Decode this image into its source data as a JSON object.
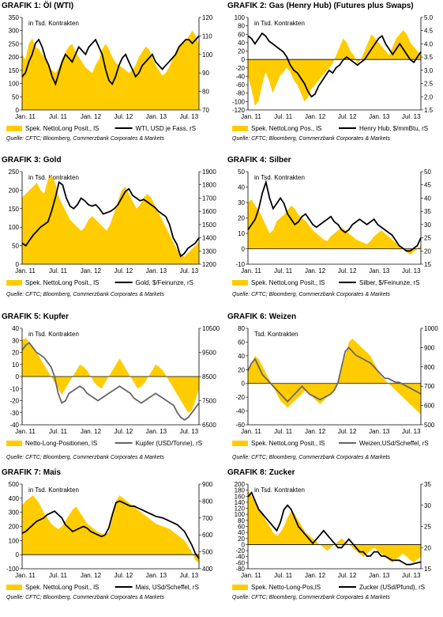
{
  "charts": [
    {
      "title": "GRAFIK 1: Öl (WTI)",
      "note": "in Tsd. Kontrakten",
      "source": "Quelle: CFTC; Bloomberg, Commerzbank Corporates & Markets",
      "legend_area": "Spek. NettoLong Posit., lS",
      "legend_line": "WTI, USD je Fass, rS"
    },
    {
      "title": "GRAFIK 2: Gas (Henry Hub) (Futures plus Swaps)",
      "note": "in Tsd. Kontrakten",
      "source": "Quelle: CFTC; Bloomberg, Commerzbank Corporates & Markets",
      "legend_area": "Spek. NettoLong Pos., lS",
      "legend_line": "Henry Hub, $/mmBtu, rS"
    },
    {
      "title": "GRAFIK 3: Gold",
      "note": "in Tsd. Kontrakten",
      "source": "Quelle: CFTC; Bloomberg, Commerzbank Corporates & Markets",
      "legend_area": "Spek. NettoLong Posit., lS",
      "legend_line": "Gold, $/Feinunze, rS"
    },
    {
      "title": "GRAFIK 4: Silber",
      "note": "in Tsd. Kontrakten",
      "source": "Quelle: CFTC; Bloomberg, Commerzbank Corporates & Markets",
      "legend_area": "Spek. NettoLong Posit., lS",
      "legend_line": "Silber, $/Feinunze, rS"
    },
    {
      "title": "GRAFIK 5: Kupfer",
      "note": "in Tsd. Kontrakten",
      "source": "Quelle: CFTC; Bloomberg, Commerzbank Corporates & Markets",
      "legend_area": "Netto-Long-Positionen, lS",
      "legend_line": "Kupfer (USD/Tonne), rS"
    },
    {
      "title": "GRAFIK 6: Weizen",
      "note": "Tsd. Kontrakten",
      "source": "Quelle: CFTC; Bloomberg, Commerzbank Corporates & Markets",
      "legend_area": "Spek. NettoLong Posit., lS",
      "legend_line": "Weizen,USd/Scheffel, rS"
    },
    {
      "title": "GRAFIK 7: Mais",
      "note": "in Tsd. Kontrakten",
      "source": "Quelle: CFTC; Bloomberg, Commerzbank Corporates & Markets",
      "legend_area": "Spek. NettoLong Posit., lS",
      "legend_line": "Mais, USd/Scheffel, rS"
    },
    {
      "title": "GRAFIK 8: Zucker",
      "note": "in Tsd. Kontrakten",
      "source": "Quelle: CFTC; Bloomberg, Commerzbank Corporates & Markets",
      "legend_area": "Spek. Netto-Long-Pos,lS",
      "legend_line": "Zucker (USd/Pfund), rS"
    }
  ],
  "colors": {
    "area": "#FFCC00",
    "line_black": "#000000",
    "line_grey": "#666666"
  },
  "chart_data": [
    {
      "type": "area+line",
      "x": [
        "Jan. 11",
        "Jul. 11",
        "Jan. 12",
        "Jul. 12",
        "Jan. 13",
        "Jul. 13"
      ],
      "yleft": {
        "min": 0,
        "max": 350,
        "ticks": [
          0,
          50,
          100,
          150,
          200,
          250,
          300,
          350
        ]
      },
      "yright": {
        "min": 70,
        "max": 120,
        "ticks": [
          70,
          80,
          90,
          100,
          110,
          120
        ]
      },
      "area": [
        210,
        190,
        250,
        270,
        240,
        230,
        210,
        200,
        170,
        150,
        140,
        160,
        190,
        220,
        240,
        250,
        220,
        200,
        180,
        160,
        150,
        140,
        170,
        190,
        230,
        250,
        230,
        200,
        180,
        170,
        160,
        150,
        140,
        150,
        170,
        200,
        220,
        240,
        230,
        200,
        170,
        150,
        130,
        140,
        160,
        190,
        220,
        240,
        250,
        260,
        280,
        300,
        280,
        250
      ],
      "line": [
        88,
        90,
        96,
        100,
        106,
        108,
        104,
        98,
        94,
        88,
        84,
        90,
        96,
        100,
        98,
        96,
        100,
        104,
        102,
        100,
        104,
        106,
        108,
        104,
        100,
        92,
        86,
        84,
        88,
        94,
        98,
        100,
        96,
        92,
        88,
        90,
        94,
        96,
        98,
        100,
        96,
        94,
        92,
        94,
        96,
        98,
        100,
        104,
        106,
        108,
        108,
        106,
        108,
        110
      ]
    },
    {
      "type": "area+line",
      "x": [
        "Jan. 11",
        "Jul. 11",
        "Jan. 12",
        "Jul. 12",
        "Jan. 13",
        "Jul. 13"
      ],
      "yleft": {
        "min": -120,
        "max": 100,
        "ticks": [
          -120,
          -100,
          -80,
          -60,
          -40,
          -20,
          0,
          20,
          40,
          60,
          80,
          100
        ]
      },
      "yright": {
        "min": 1.5,
        "max": 5.0,
        "ticks": [
          1.5,
          2.0,
          2.5,
          3.0,
          3.5,
          4.0,
          4.5,
          5.0
        ]
      },
      "area": [
        -40,
        -70,
        -110,
        -100,
        -60,
        -30,
        -50,
        -80,
        -60,
        -40,
        -30,
        -20,
        -30,
        -50,
        -60,
        -80,
        -100,
        -90,
        -70,
        -60,
        -50,
        -40,
        -30,
        -20,
        -10,
        10,
        30,
        50,
        40,
        20,
        10,
        -10,
        0,
        20,
        40,
        60,
        50,
        40,
        30,
        20,
        10,
        30,
        50,
        60,
        70,
        60,
        40,
        30,
        20,
        10
      ],
      "line": [
        4.3,
        4.2,
        4.0,
        4.2,
        4.4,
        4.3,
        4.1,
        4.0,
        3.9,
        3.8,
        3.7,
        3.5,
        3.2,
        3.0,
        2.9,
        2.7,
        2.5,
        2.2,
        2.0,
        2.1,
        2.4,
        2.6,
        2.8,
        3.0,
        2.9,
        3.1,
        3.2,
        3.4,
        3.5,
        3.4,
        3.3,
        3.2,
        3.3,
        3.4,
        3.6,
        3.8,
        4.0,
        4.2,
        4.3,
        4.0,
        3.8,
        3.6,
        3.8,
        4.0,
        3.8,
        3.6,
        3.4,
        3.3,
        3.5,
        3.7
      ]
    },
    {
      "type": "area+line",
      "x": [
        "Jan. 11",
        "Jul. 11",
        "Jan. 12",
        "Jul. 12",
        "Jan. 13",
        "Jul. 13"
      ],
      "yleft": {
        "min": 0,
        "max": 250,
        "ticks": [
          0,
          50,
          100,
          150,
          200,
          250
        ]
      },
      "yright": {
        "min": 1200,
        "max": 1900,
        "ticks": [
          1200,
          1300,
          1400,
          1500,
          1600,
          1700,
          1800,
          1900
        ]
      },
      "area": [
        180,
        190,
        200,
        210,
        220,
        200,
        190,
        230,
        240,
        220,
        180,
        160,
        140,
        120,
        110,
        100,
        90,
        100,
        120,
        130,
        120,
        110,
        100,
        90,
        110,
        140,
        170,
        200,
        210,
        190,
        170,
        150,
        160,
        180,
        190,
        180,
        160,
        140,
        120,
        100,
        80,
        60,
        40,
        30,
        20,
        30,
        40,
        50,
        60
      ],
      "line": [
        1360,
        1340,
        1380,
        1420,
        1450,
        1480,
        1500,
        1520,
        1600,
        1700,
        1820,
        1800,
        1700,
        1640,
        1620,
        1650,
        1700,
        1680,
        1650,
        1640,
        1650,
        1620,
        1580,
        1590,
        1600,
        1620,
        1650,
        1700,
        1750,
        1770,
        1720,
        1700,
        1680,
        1690,
        1670,
        1650,
        1630,
        1600,
        1580,
        1560,
        1500,
        1400,
        1350,
        1260,
        1280,
        1320,
        1340,
        1360,
        1400
      ]
    },
    {
      "type": "area+line",
      "x": [
        "Jan. 11",
        "Jul. 11",
        "Jan. 12",
        "Jul. 12",
        "Jan. 13",
        "Jul. 13"
      ],
      "yleft": {
        "min": -10,
        "max": 50,
        "ticks": [
          -10,
          0,
          10,
          20,
          30,
          40,
          50
        ]
      },
      "yright": {
        "min": 15,
        "max": 50,
        "ticks": [
          15,
          20,
          25,
          30,
          35,
          40,
          45,
          50
        ]
      },
      "area": [
        30,
        32,
        28,
        25,
        20,
        15,
        10,
        12,
        18,
        20,
        22,
        25,
        28,
        26,
        22,
        20,
        18,
        15,
        12,
        10,
        8,
        6,
        5,
        8,
        10,
        12,
        14,
        12,
        10,
        8,
        6,
        5,
        4,
        3,
        5,
        8,
        10,
        12,
        10,
        8,
        6,
        4,
        2,
        0,
        -2,
        -4,
        -2,
        0,
        2
      ],
      "line": [
        28,
        30,
        32,
        36,
        42,
        46,
        40,
        36,
        38,
        40,
        38,
        34,
        32,
        30,
        31,
        33,
        34,
        32,
        30,
        29,
        30,
        31,
        32,
        33,
        31,
        30,
        28,
        27,
        28,
        30,
        31,
        32,
        31,
        30,
        31,
        32,
        30,
        29,
        28,
        27,
        26,
        24,
        22,
        21,
        20,
        20,
        21,
        22,
        25
      ]
    },
    {
      "type": "area+line",
      "x": [
        "Jan. 11",
        "Jul. 11",
        "Jan. 12",
        "Jul. 12",
        "Jan. 13",
        "Jul. 13"
      ],
      "yleft": {
        "min": -40,
        "max": 40,
        "ticks": [
          -40,
          -30,
          -20,
          -10,
          0,
          10,
          20,
          30,
          40
        ]
      },
      "yright": {
        "min": 6500,
        "max": 10500,
        "ticks": [
          6500,
          7500,
          8500,
          9500,
          10500
        ]
      },
      "area": [
        30,
        32,
        28,
        25,
        20,
        15,
        10,
        5,
        0,
        -5,
        -10,
        -15,
        -10,
        -5,
        0,
        5,
        10,
        8,
        5,
        0,
        -5,
        -8,
        -10,
        -5,
        0,
        5,
        10,
        15,
        10,
        5,
        0,
        -5,
        -10,
        -8,
        -5,
        0,
        5,
        10,
        8,
        5,
        0,
        -5,
        -10,
        -15,
        -20,
        -25,
        -30,
        -28,
        -20,
        -10
      ],
      "line": [
        9600,
        9800,
        9900,
        9700,
        9500,
        9400,
        9300,
        9100,
        8900,
        8500,
        7800,
        7400,
        7500,
        7800,
        7900,
        8000,
        8100,
        8000,
        7800,
        7700,
        7600,
        7500,
        7600,
        7700,
        7800,
        7900,
        8000,
        8100,
        8000,
        7900,
        7800,
        7600,
        7500,
        7400,
        7500,
        7600,
        7700,
        7800,
        7700,
        7600,
        7500,
        7400,
        7300,
        7000,
        6800,
        6700,
        6800,
        7000,
        7200,
        7400
      ]
    },
    {
      "type": "area+line",
      "x": [
        "Jan. 11",
        "Jul. 11",
        "Jan. 12",
        "Jul. 12",
        "Jan. 13",
        "Jul. 13"
      ],
      "yleft": {
        "min": -60,
        "max": 80,
        "ticks": [
          -60,
          -40,
          -20,
          0,
          20,
          40,
          60,
          80
        ]
      },
      "yright": {
        "min": 500,
        "max": 1000,
        "ticks": [
          500,
          600,
          700,
          800,
          900,
          1000
        ]
      },
      "area": [
        20,
        30,
        40,
        35,
        25,
        15,
        5,
        -5,
        -15,
        -25,
        -30,
        -35,
        -30,
        -25,
        -20,
        -15,
        -10,
        -15,
        -20,
        -25,
        -30,
        -25,
        -20,
        -15,
        -10,
        0,
        20,
        40,
        60,
        65,
        60,
        55,
        50,
        45,
        40,
        30,
        20,
        10,
        5,
        0,
        -5,
        -10,
        -15,
        -20,
        -25,
        -30,
        -35,
        -40,
        -45
      ],
      "line": [
        780,
        820,
        840,
        800,
        760,
        740,
        720,
        700,
        680,
        660,
        640,
        620,
        640,
        660,
        680,
        700,
        680,
        660,
        650,
        640,
        630,
        640,
        650,
        660,
        680,
        720,
        800,
        880,
        900,
        880,
        860,
        850,
        840,
        830,
        820,
        800,
        780,
        760,
        740,
        740,
        730,
        720,
        720,
        710,
        700,
        690,
        680,
        670,
        660
      ]
    },
    {
      "type": "area+line",
      "x": [
        "Jan. 11",
        "Jul. 11",
        "Jan. 12",
        "Jul. 12",
        "Jan. 13",
        "Jul. 13"
      ],
      "yleft": {
        "min": -100,
        "max": 500,
        "ticks": [
          -100,
          0,
          100,
          200,
          300,
          400,
          500
        ]
      },
      "yright": {
        "min": 400,
        "max": 900,
        "ticks": [
          400,
          500,
          600,
          700,
          800,
          900
        ]
      },
      "area": [
        350,
        380,
        400,
        420,
        390,
        350,
        300,
        260,
        220,
        200,
        180,
        200,
        240,
        280,
        320,
        340,
        300,
        260,
        220,
        200,
        180,
        160,
        150,
        140,
        160,
        260,
        380,
        420,
        400,
        380,
        360,
        340,
        320,
        300,
        280,
        260,
        240,
        220,
        210,
        200,
        190,
        180,
        160,
        140,
        120,
        100,
        60,
        20,
        -40,
        -60
      ],
      "line": [
        610,
        620,
        640,
        660,
        680,
        690,
        700,
        720,
        730,
        740,
        720,
        700,
        660,
        640,
        620,
        630,
        640,
        650,
        640,
        620,
        610,
        600,
        590,
        600,
        640,
        720,
        790,
        800,
        790,
        780,
        770,
        770,
        760,
        750,
        740,
        730,
        720,
        710,
        705,
        700,
        690,
        680,
        670,
        660,
        640,
        620,
        580,
        540,
        490,
        460
      ]
    },
    {
      "type": "area+line",
      "x": [
        "Jan. 11",
        "Jul. 11",
        "Jan. 12",
        "Jul. 12",
        "Jan. 13",
        "Jul. 13"
      ],
      "yleft": {
        "min": -80,
        "max": 200,
        "ticks": [
          -80,
          -60,
          -40,
          -20,
          0,
          20,
          40,
          60,
          80,
          100,
          120,
          140,
          160,
          180,
          200
        ]
      },
      "yright": {
        "min": 15,
        "max": 35,
        "ticks": [
          15,
          20,
          25,
          30,
          35
        ]
      },
      "area": [
        180,
        160,
        140,
        120,
        100,
        80,
        60,
        40,
        30,
        40,
        60,
        90,
        110,
        100,
        80,
        60,
        40,
        30,
        20,
        10,
        0,
        -10,
        -20,
        -10,
        0,
        10,
        20,
        10,
        0,
        -10,
        -20,
        -30,
        -40,
        -30,
        -20,
        -10,
        -20,
        -30,
        -40,
        -50,
        -60,
        -50,
        -40,
        -30,
        -40,
        -50,
        -60,
        -50,
        -40
      ],
      "line": [
        32,
        33,
        31,
        29,
        28,
        27,
        26,
        25,
        24,
        26,
        29,
        30,
        29,
        27,
        25,
        24,
        23,
        22,
        21,
        22,
        23,
        24,
        23,
        22,
        21,
        20,
        20,
        21,
        22,
        21,
        20,
        19,
        19,
        18,
        18,
        19,
        19,
        18,
        18,
        17.5,
        17,
        17,
        17,
        16.5,
        16,
        16,
        16.2,
        16.4,
        16.6
      ]
    }
  ]
}
